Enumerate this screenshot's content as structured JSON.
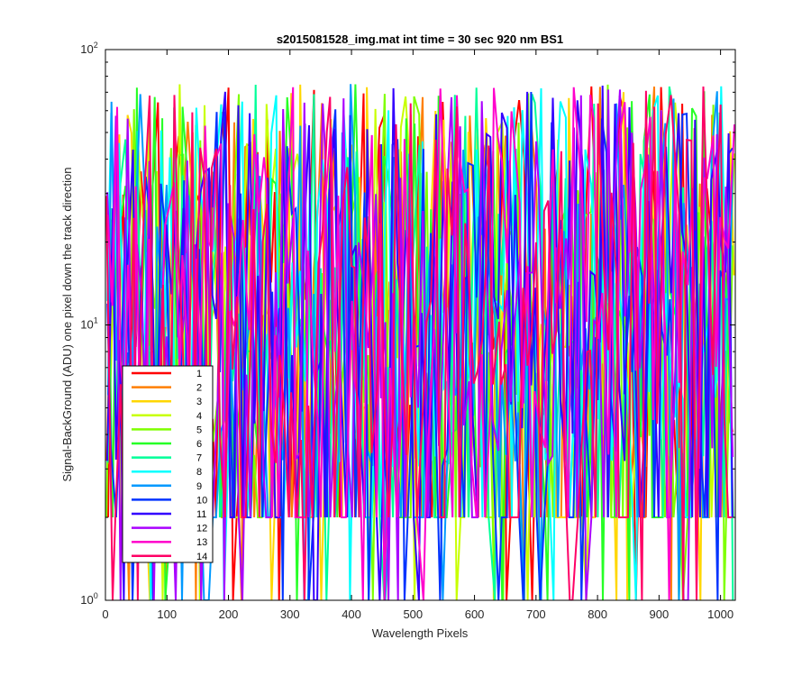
{
  "chart_data": {
    "type": "line",
    "title": "s2015081528_img.mat int time = 30 sec  920 nm BS1",
    "xlabel": "Wavelength Pixels",
    "ylabel": "Signal-BackGround (ADU) one pixel down the track direction",
    "xlim": [
      0,
      1024
    ],
    "ylim": [
      1,
      100
    ],
    "yscale": "log",
    "xticks": [
      "0",
      "100",
      "200",
      "300",
      "400",
      "500",
      "600",
      "700",
      "800",
      "900",
      "1000"
    ],
    "yticks": [
      {
        "base": "10",
        "exp": "0"
      },
      {
        "base": "10",
        "exp": "1"
      },
      {
        "base": "10",
        "exp": "2"
      }
    ],
    "grid": false,
    "legend_position": "lower-left",
    "series": [
      {
        "name": "1",
        "color": "#ff0000"
      },
      {
        "name": "2",
        "color": "#ff7f00"
      },
      {
        "name": "3",
        "color": "#ffd700"
      },
      {
        "name": "4",
        "color": "#c8ff00"
      },
      {
        "name": "5",
        "color": "#7fff00"
      },
      {
        "name": "6",
        "color": "#26ff26"
      },
      {
        "name": "7",
        "color": "#00ff99"
      },
      {
        "name": "8",
        "color": "#00ffff"
      },
      {
        "name": "9",
        "color": "#0099ff"
      },
      {
        "name": "10",
        "color": "#0033ff"
      },
      {
        "name": "11",
        "color": "#3300ff"
      },
      {
        "name": "12",
        "color": "#aa00ff"
      },
      {
        "name": "13",
        "color": "#ff00cc"
      },
      {
        "name": "14",
        "color": "#ff0066"
      }
    ]
  }
}
